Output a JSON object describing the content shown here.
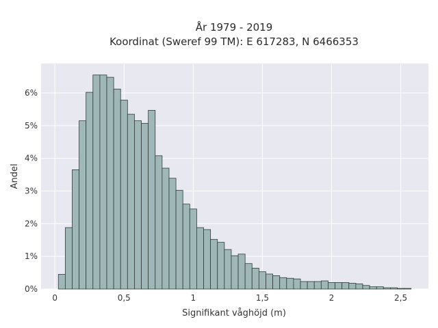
{
  "chart_data": {
    "type": "bar",
    "title_lines": [
      "År 1979 - 2019",
      "Koordinat (Sweref 99 TM): E 617283, N 6466353"
    ],
    "xlabel": "Signifikant våghöjd (m)",
    "ylabel": "Andel",
    "xlim": [
      -0.1,
      2.7
    ],
    "ylim": [
      0,
      6.9
    ],
    "x_ticks": [
      {
        "value": 0,
        "label": "0"
      },
      {
        "value": 0.5,
        "label": "0,5"
      },
      {
        "value": 1,
        "label": "1"
      },
      {
        "value": 1.5,
        "label": "1,5"
      },
      {
        "value": 2,
        "label": "2"
      },
      {
        "value": 2.5,
        "label": "2,5"
      }
    ],
    "y_ticks": [
      {
        "value": 0,
        "label": "0%"
      },
      {
        "value": 1,
        "label": "1%"
      },
      {
        "value": 2,
        "label": "2%"
      },
      {
        "value": 3,
        "label": "3%"
      },
      {
        "value": 4,
        "label": "4%"
      },
      {
        "value": 5,
        "label": "5%"
      },
      {
        "value": 6,
        "label": "6%"
      }
    ],
    "grid": true,
    "bin_width": 0.05,
    "bin_starts": [
      0.025,
      0.075,
      0.125,
      0.175,
      0.225,
      0.275,
      0.325,
      0.375,
      0.425,
      0.475,
      0.525,
      0.575,
      0.625,
      0.675,
      0.725,
      0.775,
      0.825,
      0.875,
      0.925,
      0.975,
      1.025,
      1.075,
      1.125,
      1.175,
      1.225,
      1.275,
      1.325,
      1.375,
      1.425,
      1.475,
      1.525,
      1.575,
      1.625,
      1.675,
      1.725,
      1.775,
      1.825,
      1.875,
      1.925,
      1.975,
      2.025,
      2.075,
      2.125,
      2.175,
      2.225,
      2.275,
      2.325,
      2.375,
      2.425,
      2.475,
      2.525
    ],
    "values": [
      0.45,
      1.88,
      3.65,
      5.15,
      6.02,
      6.55,
      6.55,
      6.48,
      6.12,
      5.78,
      5.35,
      5.15,
      5.07,
      5.47,
      4.08,
      3.7,
      3.39,
      3.02,
      2.6,
      2.45,
      1.88,
      1.82,
      1.52,
      1.43,
      1.21,
      1.02,
      1.07,
      0.78,
      0.64,
      0.53,
      0.46,
      0.41,
      0.35,
      0.33,
      0.31,
      0.23,
      0.23,
      0.23,
      0.25,
      0.2,
      0.2,
      0.2,
      0.18,
      0.16,
      0.11,
      0.07,
      0.07,
      0.04,
      0.04,
      0.02,
      0.02
    ],
    "colors": {
      "bar": "#9fb8b7",
      "bar_edge": "#2f3b3a",
      "plot_bg": "#e8e8f0",
      "grid": "#ffffff"
    }
  }
}
